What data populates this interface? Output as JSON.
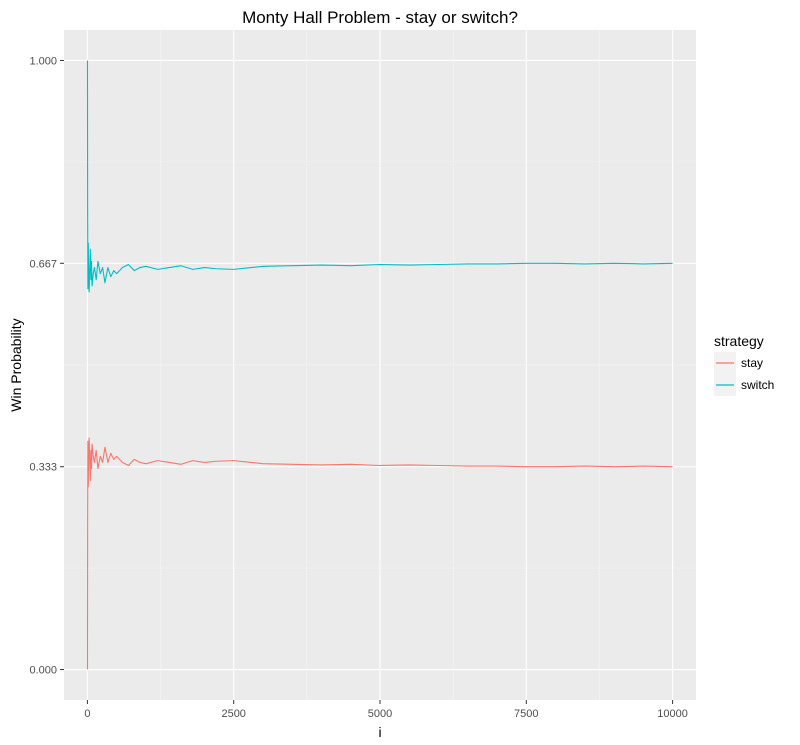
{
  "chart_data": {
    "type": "line",
    "title": "Monty Hall Problem - stay or switch?",
    "xlabel": "i",
    "ylabel": "Win Probability",
    "xlim": [
      -400,
      10400
    ],
    "ylim": [
      -0.05,
      1.05
    ],
    "x_ticks": [
      0,
      2500,
      5000,
      7500,
      10000
    ],
    "x_tick_labels": [
      "0",
      "2500",
      "5000",
      "7500",
      "10000"
    ],
    "y_ticks": [
      0,
      0.333,
      0.667,
      1
    ],
    "y_tick_labels": [
      "0.000",
      "0.333",
      "0.667",
      "1.000"
    ],
    "grid": true,
    "legend": {
      "title": "strategy",
      "position": "right"
    },
    "series": [
      {
        "name": "stay",
        "color": "#F8766D",
        "x": [
          1,
          4,
          8,
          15,
          20,
          30,
          40,
          50,
          60,
          70,
          80,
          100,
          120,
          150,
          180,
          220,
          260,
          300,
          350,
          400,
          450,
          500,
          600,
          700,
          800,
          900,
          1000,
          1200,
          1400,
          1600,
          1800,
          2000,
          2200,
          2500,
          2800,
          3000,
          3500,
          4000,
          4500,
          5000,
          5500,
          6000,
          6500,
          7000,
          7500,
          8000,
          8500,
          9000,
          9500,
          10000
        ],
        "y": [
          0.0,
          0.25,
          0.375,
          0.3,
          0.35,
          0.38,
          0.34,
          0.31,
          0.36,
          0.33,
          0.37,
          0.35,
          0.34,
          0.36,
          0.33,
          0.35,
          0.34,
          0.365,
          0.34,
          0.355,
          0.345,
          0.35,
          0.34,
          0.335,
          0.345,
          0.34,
          0.338,
          0.343,
          0.34,
          0.337,
          0.343,
          0.34,
          0.342,
          0.343,
          0.34,
          0.338,
          0.337,
          0.336,
          0.337,
          0.335,
          0.336,
          0.335,
          0.334,
          0.334,
          0.333,
          0.333,
          0.334,
          0.333,
          0.334,
          0.333
        ]
      },
      {
        "name": "switch",
        "color": "#00BFC4",
        "x": [
          1,
          4,
          8,
          15,
          20,
          30,
          40,
          50,
          60,
          70,
          80,
          100,
          120,
          150,
          180,
          220,
          260,
          300,
          350,
          400,
          450,
          500,
          600,
          700,
          800,
          900,
          1000,
          1200,
          1400,
          1600,
          1800,
          2000,
          2200,
          2500,
          2800,
          3000,
          3500,
          4000,
          4500,
          5000,
          5500,
          6000,
          6500,
          7000,
          7500,
          8000,
          8500,
          9000,
          9500,
          10000
        ],
        "y": [
          1.0,
          0.75,
          0.625,
          0.7,
          0.65,
          0.62,
          0.66,
          0.69,
          0.64,
          0.67,
          0.63,
          0.65,
          0.66,
          0.64,
          0.67,
          0.65,
          0.66,
          0.635,
          0.66,
          0.645,
          0.655,
          0.65,
          0.66,
          0.665,
          0.655,
          0.66,
          0.662,
          0.657,
          0.66,
          0.663,
          0.657,
          0.66,
          0.658,
          0.657,
          0.66,
          0.662,
          0.663,
          0.664,
          0.663,
          0.665,
          0.664,
          0.665,
          0.666,
          0.666,
          0.667,
          0.667,
          0.666,
          0.667,
          0.666,
          0.667
        ]
      }
    ]
  }
}
